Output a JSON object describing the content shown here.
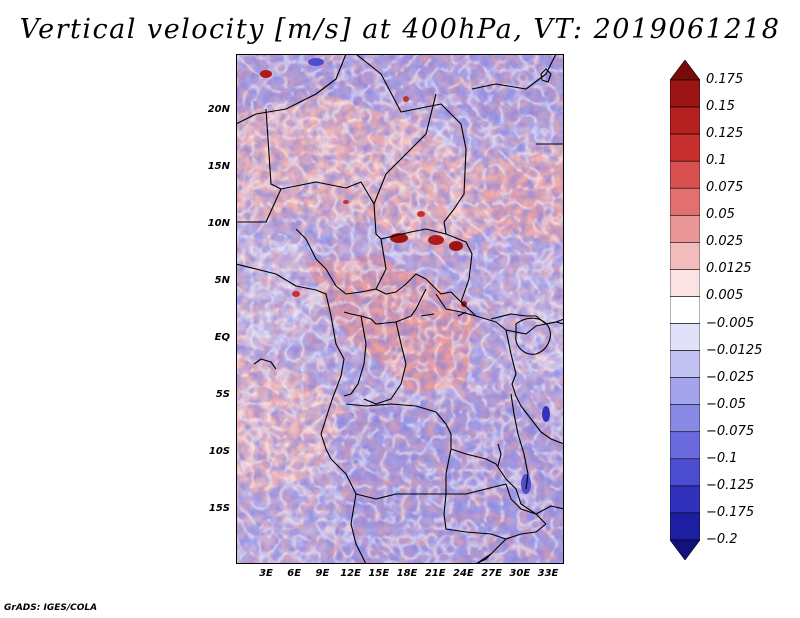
{
  "title": "Vertical velocity [m/s] at 400hPa, VT: 2019061218",
  "map": {
    "variable": "Vertical velocity",
    "units": "m/s",
    "level": "400hPa",
    "valid_time": "2019061218",
    "lat_labels": [
      "20N",
      "15N",
      "10N",
      "5N",
      "EQ",
      "5S",
      "10S",
      "15S"
    ],
    "lon_labels": [
      "3E",
      "6E",
      "9E",
      "12E",
      "15E",
      "18E",
      "21E",
      "24E",
      "27E",
      "30E",
      "33E"
    ]
  },
  "colorbar": {
    "labels": [
      "0.175",
      "0.15",
      "0.125",
      "0.1",
      "0.075",
      "0.05",
      "0.025",
      "0.0125",
      "0.005",
      "−0.005",
      "−0.0125",
      "−0.025",
      "−0.05",
      "−0.075",
      "−0.1",
      "−0.125",
      "−0.175",
      "−0.2"
    ],
    "colors": [
      "#7a0a0a",
      "#9c1414",
      "#b52020",
      "#c83030",
      "#d95050",
      "#e27070",
      "#ea9696",
      "#f3bcbc",
      "#fbe3e3",
      "#ffffff",
      "#e1e1fa",
      "#c3c3f3",
      "#a4a4ec",
      "#8888e5",
      "#6a6ade",
      "#4d4dd1",
      "#3131bb",
      "#1e1ea2",
      "#12127c"
    ]
  },
  "footer": "GrADS: IGES/COLA"
}
